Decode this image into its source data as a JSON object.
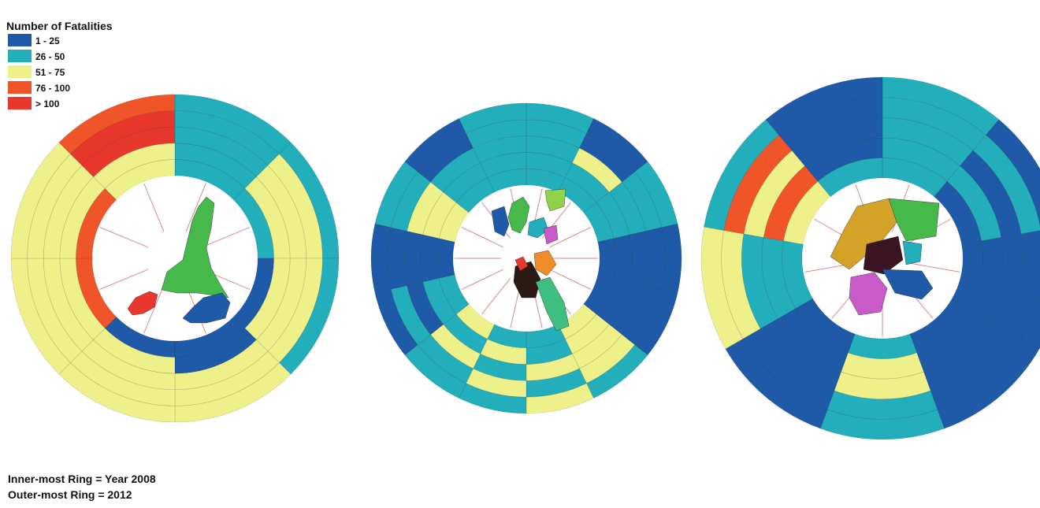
{
  "legend": {
    "title": "Number of Fatalities",
    "classes": [
      {
        "label": "1 - 25",
        "color": "#1f5aa8"
      },
      {
        "label": "26 - 50",
        "color": "#23aebc"
      },
      {
        "label": "51 - 75",
        "color": "#eef08a"
      },
      {
        "label": "76 - 100",
        "color": "#f0552a"
      },
      {
        "label": "> 100",
        "color": "#e8372d"
      }
    ]
  },
  "notes": {
    "inner": "Inner-most Ring = Year 2008",
    "outer": "Outer-most Ring = 2012"
  },
  "chart_data": [
    {
      "type": "radial-ring",
      "ring_order": "inner-most ring = first year, outer-most ring = last year",
      "classes": [
        "1 - 25",
        "26 - 50",
        "51 - 75",
        "76 - 100",
        "> 100"
      ],
      "sectors": [
        {
          "rings": [
            2,
            2,
            2,
            2,
            2
          ]
        },
        {
          "rings": [
            2,
            3,
            3,
            3,
            2
          ]
        },
        {
          "rings": [
            1,
            3,
            3,
            3,
            2
          ]
        },
        {
          "rings": [
            1,
            1,
            3,
            3,
            3
          ]
        },
        {
          "rings": [
            1,
            3,
            3,
            3,
            3
          ]
        },
        {
          "rings": [
            4,
            3,
            3,
            3,
            3
          ]
        },
        {
          "rings": [
            4,
            3,
            3,
            3,
            3
          ]
        },
        {
          "rings": [
            3,
            3,
            5,
            5,
            4
          ]
        }
      ]
    },
    {
      "type": "radial-ring",
      "ring_order": "inner-most ring = first year, outer-most ring = last year",
      "classes": [
        "1 - 25",
        "26 - 50",
        "51 - 75",
        "76 - 100",
        "> 100"
      ],
      "sectors": [
        {
          "rings": [
            2,
            2,
            2,
            2,
            2
          ]
        },
        {
          "rings": [
            2,
            2,
            3,
            1,
            1
          ]
        },
        {
          "rings": [
            2,
            2,
            2,
            2,
            2
          ]
        },
        {
          "rings": [
            1,
            1,
            1,
            1,
            1
          ]
        },
        {
          "rings": [
            1,
            1,
            1,
            1,
            1
          ]
        },
        {
          "rings": [
            3,
            3,
            3,
            3,
            2
          ]
        },
        {
          "rings": [
            2,
            2,
            3,
            2,
            3
          ]
        },
        {
          "rings": [
            2,
            3,
            2,
            3,
            2
          ]
        },
        {
          "rings": [
            3,
            2,
            3,
            2,
            2
          ]
        },
        {
          "rings": [
            2,
            2,
            1,
            2,
            1
          ]
        },
        {
          "rings": [
            1,
            1,
            1,
            1,
            1
          ]
        },
        {
          "rings": [
            3,
            3,
            3,
            2,
            2
          ]
        },
        {
          "rings": [
            2,
            2,
            2,
            1,
            1
          ]
        },
        {
          "rings": [
            2,
            2,
            2,
            2,
            2
          ]
        }
      ]
    },
    {
      "type": "radial-ring",
      "ring_order": "inner-most ring = first year, outer-most ring = last year",
      "classes": [
        "1 - 25",
        "26 - 50",
        "51 - 75",
        "76 - 100",
        "> 100"
      ],
      "sectors": [
        {
          "rings": [
            2,
            2,
            2,
            2,
            2
          ]
        },
        {
          "rings": [
            1,
            2,
            1,
            2,
            1
          ]
        },
        {
          "rings": [
            1,
            1,
            1,
            1,
            1
          ]
        },
        {
          "rings": [
            1,
            1,
            1,
            1,
            1
          ]
        },
        {
          "rings": [
            2,
            3,
            3,
            2,
            2
          ]
        },
        {
          "rings": [
            1,
            1,
            1,
            1,
            1
          ]
        },
        {
          "rings": [
            2,
            2,
            2,
            3,
            3
          ]
        },
        {
          "rings": [
            3,
            4,
            3,
            4,
            2
          ]
        },
        {
          "rings": [
            2,
            1,
            1,
            1,
            1
          ]
        }
      ]
    }
  ]
}
